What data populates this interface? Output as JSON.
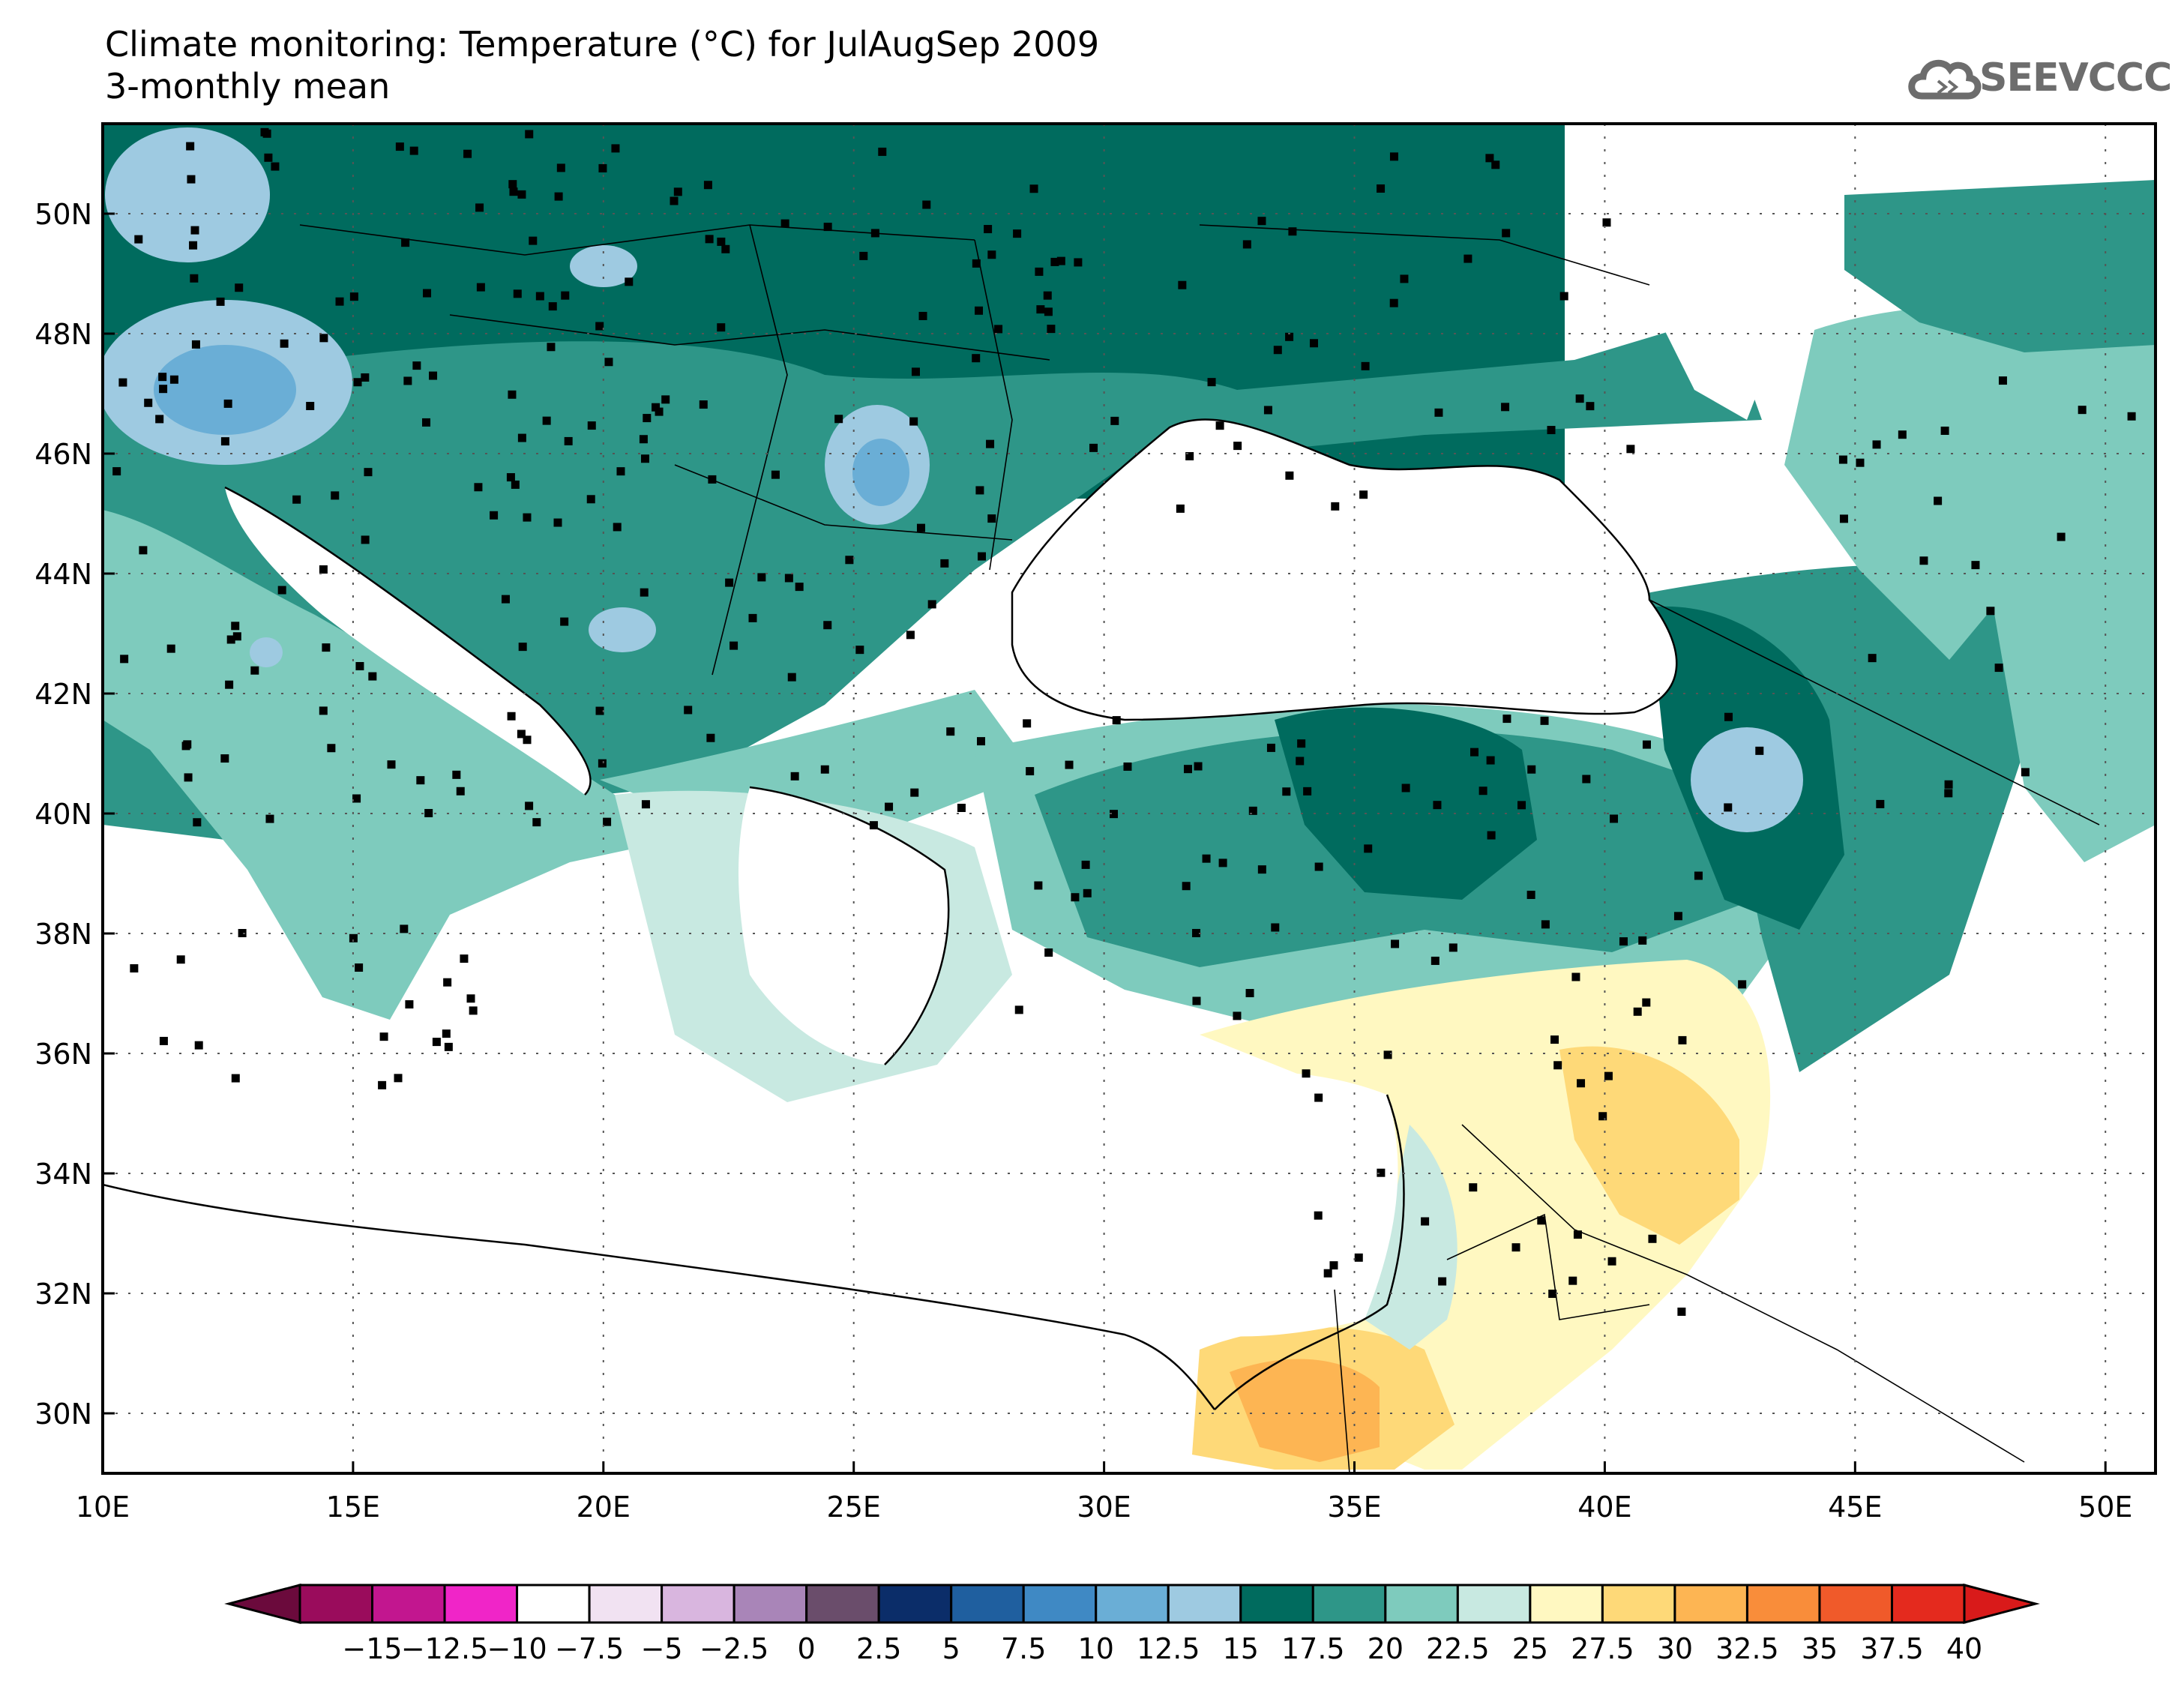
{
  "header": {
    "title": "Climate monitoring: Temperature (°C) for JulAugSep 2009",
    "subtitle": "3-monthly mean",
    "logo_text": "SEEVCCC"
  },
  "map": {
    "lon_range": [
      10,
      51
    ],
    "lat_range": [
      29,
      51.5
    ],
    "lon_ticks": [
      "10E",
      "15E",
      "20E",
      "25E",
      "30E",
      "35E",
      "40E",
      "45E",
      "50E"
    ],
    "lat_ticks": [
      "30N",
      "32N",
      "34N",
      "36N",
      "38N",
      "40N",
      "42N",
      "44N",
      "46N",
      "48N",
      "50N"
    ],
    "grid": "dotted"
  },
  "colorbar": {
    "labels": [
      "-15",
      "-12.5",
      "-10",
      "-7.5",
      "-5",
      "-2.5",
      "0",
      "2.5",
      "5",
      "7.5",
      "10",
      "12.5",
      "15",
      "17.5",
      "20",
      "22.5",
      "25",
      "27.5",
      "30",
      "32.5",
      "35",
      "37.5",
      "40"
    ],
    "colors": [
      "#9a0c5c",
      "#c2168f",
      "#f025c8",
      "#ffffff",
      "#f1e2f2",
      "#d9b6df",
      "#a985b8",
      "#6a4d6b",
      "#0b2d69",
      "#1f5f9f",
      "#3f89c4",
      "#6aaed6",
      "#9ecae1",
      "#006b5e",
      "#2e9688",
      "#7ecbbd",
      "#c8e9e1",
      "#fff8c1",
      "#fed978",
      "#fdb553",
      "#f98d3a",
      "#f05a2a",
      "#e42a1e"
    ],
    "left_cap": "#6b0a3c",
    "right_cap": "#d91a1a"
  }
}
